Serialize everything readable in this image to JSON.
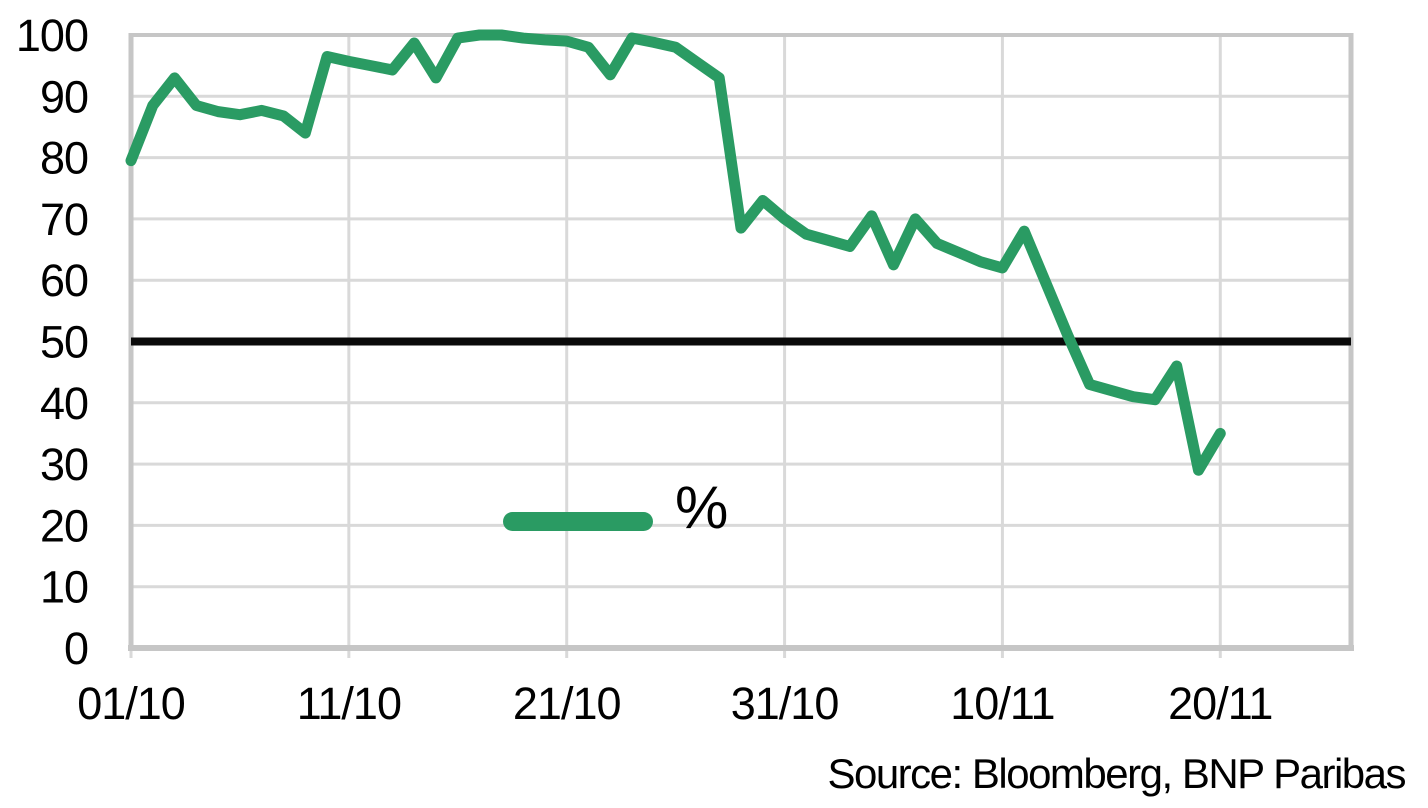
{
  "chart_data": {
    "type": "line",
    "ylim": [
      0,
      100
    ],
    "y_ticks": [
      0,
      10,
      20,
      30,
      40,
      50,
      60,
      70,
      80,
      90,
      100
    ],
    "x_ticks": [
      {
        "label": "01/10",
        "day": 0
      },
      {
        "label": "11/10",
        "day": 10
      },
      {
        "label": "21/10",
        "day": 20
      },
      {
        "label": "31/10",
        "day": 30
      },
      {
        "label": "10/11",
        "day": 40
      },
      {
        "label": "20/11",
        "day": 50
      }
    ],
    "x_axis_total_days": 56,
    "grid": true,
    "legend": {
      "label": "%",
      "position": "inside-bottom-center-left"
    },
    "reference_line": {
      "value": 50
    },
    "series": [
      {
        "name": "%",
        "points": [
          {
            "date": "01/10",
            "value": 79.5
          },
          {
            "date": "02/10",
            "value": 88.5
          },
          {
            "date": "03/10",
            "value": 93
          },
          {
            "date": "04/10",
            "value": 88.5
          },
          {
            "date": "05/10",
            "value": 87.5
          },
          {
            "date": "06/10",
            "value": 87
          },
          {
            "date": "07/10",
            "value": 87.7
          },
          {
            "date": "08/10",
            "value": 86.8
          },
          {
            "date": "09/10",
            "value": 84
          },
          {
            "date": "10/10",
            "value": 96.5
          },
          {
            "date": "11/10",
            "value": 95.7
          },
          {
            "date": "12/10",
            "value": 95
          },
          {
            "date": "13/10",
            "value": 94.3
          },
          {
            "date": "14/10",
            "value": 98.7
          },
          {
            "date": "15/10",
            "value": 93
          },
          {
            "date": "16/10",
            "value": 99.5
          },
          {
            "date": "17/10",
            "value": 100
          },
          {
            "date": "18/10",
            "value": 100
          },
          {
            "date": "19/10",
            "value": 99.5
          },
          {
            "date": "20/10",
            "value": 99.2
          },
          {
            "date": "21/10",
            "value": 99
          },
          {
            "date": "22/10",
            "value": 98
          },
          {
            "date": "23/10",
            "value": 93.5
          },
          {
            "date": "24/10",
            "value": 99.5
          },
          {
            "date": "25/10",
            "value": 98.8
          },
          {
            "date": "26/10",
            "value": 98
          },
          {
            "date": "27/10",
            "value": 95.5
          },
          {
            "date": "28/10",
            "value": 93
          },
          {
            "date": "29/10",
            "value": 68.5
          },
          {
            "date": "30/10",
            "value": 73
          },
          {
            "date": "31/10",
            "value": 70
          },
          {
            "date": "01/11",
            "value": 67.5
          },
          {
            "date": "02/11",
            "value": 66.5
          },
          {
            "date": "03/11",
            "value": 65.5
          },
          {
            "date": "04/11",
            "value": 70.5
          },
          {
            "date": "05/11",
            "value": 62.5
          },
          {
            "date": "06/11",
            "value": 70
          },
          {
            "date": "07/11",
            "value": 66
          },
          {
            "date": "08/11",
            "value": 64.5
          },
          {
            "date": "09/11",
            "value": 63
          },
          {
            "date": "10/11",
            "value": 62
          },
          {
            "date": "11/11",
            "value": 68
          },
          {
            "date": "12/11",
            "value": 59.5
          },
          {
            "date": "13/11",
            "value": 51
          },
          {
            "date": "14/11",
            "value": 43
          },
          {
            "date": "15/11",
            "value": 42
          },
          {
            "date": "16/11",
            "value": 41
          },
          {
            "date": "17/11",
            "value": 40.5
          },
          {
            "date": "18/11",
            "value": 46
          },
          {
            "date": "19/11",
            "value": 29
          },
          {
            "date": "20/11",
            "value": 35
          }
        ]
      }
    ],
    "source_note": "Source: Bloomberg, BNP Paribas"
  },
  "colors": {
    "series_green": "#2A9B63",
    "gridline": "#D9D9D9",
    "axis_border": "#C6C6C6",
    "reference_black": "#0A0A0A",
    "text": "#000000",
    "background": "#FFFFFF"
  }
}
